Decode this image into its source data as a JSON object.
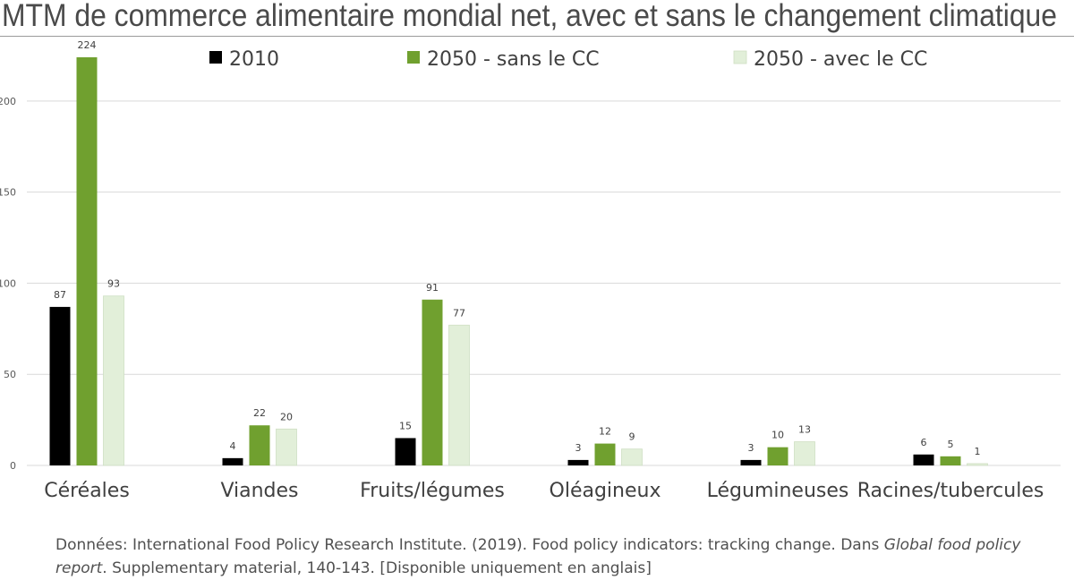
{
  "title": "MTM de commerce alimentaire mondial net, avec et sans le changement climatique",
  "source": {
    "before": "Données: International Food Policy Research Institute. (2019). Food policy indicators: tracking change. Dans ",
    "italic": "Global food policy report",
    "after": ". Supplementary material, 140-143. [Disponible uniquement en anglais]"
  },
  "colors": {
    "series_2010": "#000000",
    "series_sans": "#70a02f",
    "series_avec": "#e2efd9",
    "series_avec_stroke": "#cfdfc3",
    "gridline": "#d9d9d9",
    "axis_text": "#595959"
  },
  "chart_data": {
    "type": "bar",
    "title": "MTM de commerce alimentaire mondial net, avec et sans le changement climatique",
    "xlabel": "",
    "ylabel": "",
    "ylim": [
      0,
      224
    ],
    "yticks": [
      "0",
      "50",
      "100",
      "150",
      "200"
    ],
    "grid": true,
    "legend_position": "top",
    "categories": [
      "Céréales",
      "Viandes",
      "Fruits/légumes",
      "Oléagineux",
      "Légumineuses",
      "Racines/tubercules"
    ],
    "series": [
      {
        "name": "2010",
        "values": [
          87,
          4,
          15,
          3,
          3,
          6
        ]
      },
      {
        "name": "2050 - sans le CC",
        "values": [
          224,
          22,
          91,
          12,
          10,
          5
        ]
      },
      {
        "name": "2050 - avec le CC",
        "values": [
          93,
          20,
          77,
          9,
          13,
          1
        ]
      }
    ]
  }
}
